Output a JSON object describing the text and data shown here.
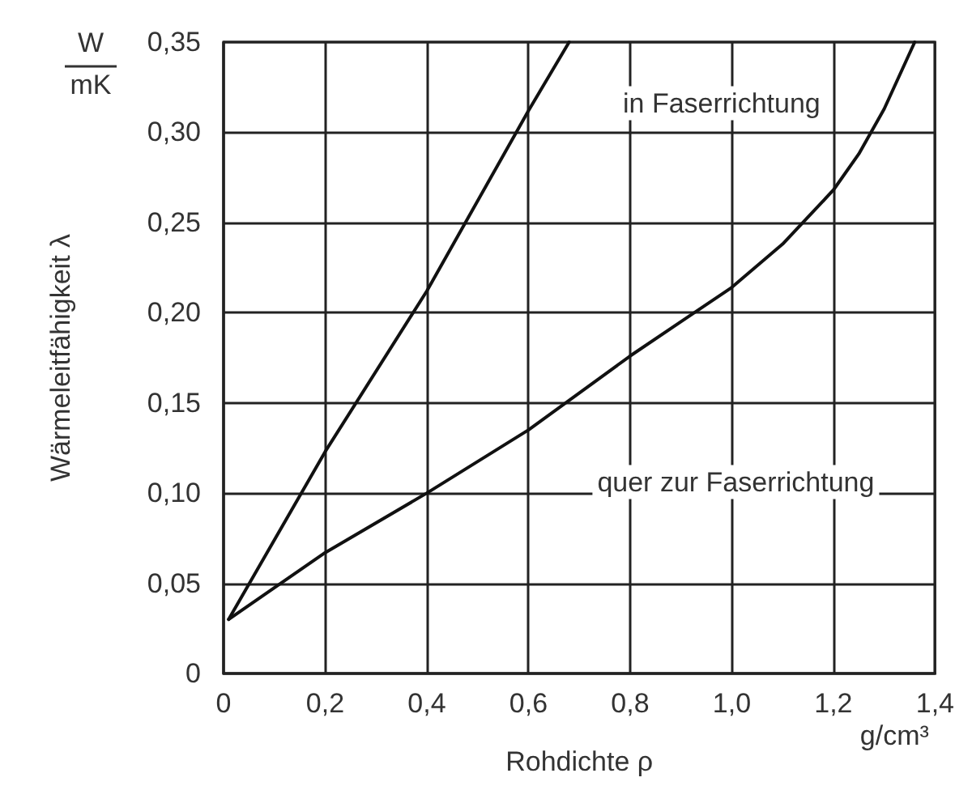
{
  "chart_data": {
    "type": "line",
    "xlabel": "Rohdichte ρ",
    "ylabel": "Wärmeleitfähigkeit λ",
    "series": [
      {
        "color": "#111111",
        "x": [
          0.01,
          0.2,
          0.4,
          0.6,
          0.68
        ],
        "values": [
          0.03,
          0.123,
          0.212,
          0.312,
          0.35
        ]
      },
      {
        "color": "#111111",
        "x": [
          0.01,
          0.2,
          0.4,
          0.6,
          0.8,
          0.9,
          1.0,
          1.1,
          1.2,
          1.25,
          1.3,
          1.36
        ],
        "values": [
          0.03,
          0.067,
          0.1,
          0.135,
          0.176,
          0.195,
          0.214,
          0.238,
          0.268,
          0.288,
          0.313,
          0.35
        ]
      }
    ],
    "annotations": [
      "in Faserrichtung",
      "quer zur Faserrichtung",
      "W",
      "mK",
      "g/cm³"
    ],
    "xlim": [
      0,
      1.4
    ],
    "xticks": [
      0,
      {
        "value": 0.2,
        "label": "0,2"
      },
      {
        "value": 0.4,
        "label": "0,4"
      },
      {
        "value": 0.6,
        "label": "0,6"
      },
      {
        "value": 0.8,
        "label": "0,8"
      },
      {
        "value": 1.0,
        "label": "1,0"
      },
      {
        "value": 1.2,
        "label": "1,2"
      },
      {
        "value": 1.4,
        "label": "1,4"
      }
    ],
    "ylim": [
      0,
      0.35
    ],
    "yticks": [
      0,
      {
        "value": 0.05,
        "label": "0,05"
      },
      {
        "value": 0.1,
        "label": "0,10"
      },
      {
        "value": 0.15,
        "label": "0,15"
      },
      {
        "value": 0.2,
        "label": "0,20"
      },
      {
        "value": 0.25,
        "label": "0,25"
      },
      {
        "value": 0.3,
        "label": "0,30"
      },
      {
        "value": 0.35,
        "label": "0,35"
      }
    ],
    "grid": true,
    "marker": "none",
    "line_style": "solid"
  }
}
